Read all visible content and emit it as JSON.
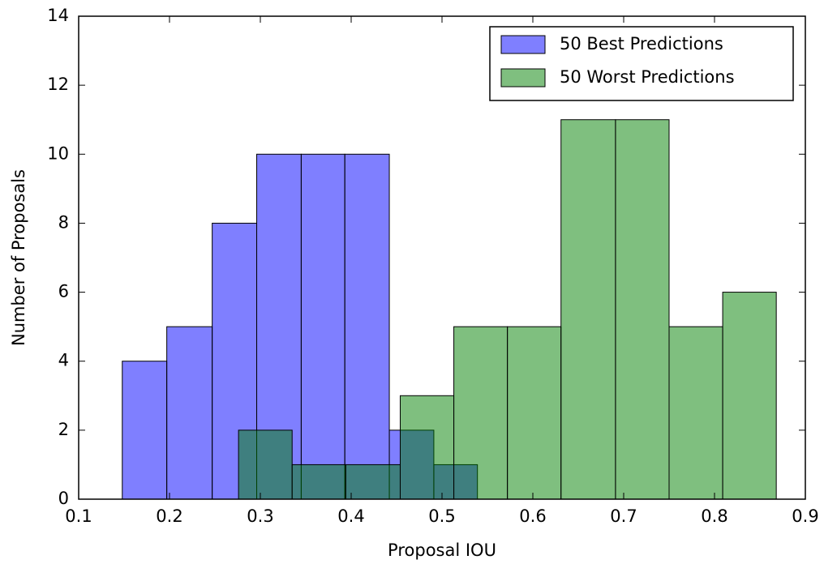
{
  "chart_data": {
    "type": "histogram",
    "xlabel": "Proposal IOU",
    "ylabel": "Number of Proposals",
    "series": [
      {
        "name": "50 Best Predictions",
        "color": "#0000ff",
        "bins": [
          0.148,
          0.197,
          0.247,
          0.296,
          0.345,
          0.393,
          0.442,
          0.491,
          0.539
        ],
        "values": [
          4,
          5,
          8,
          10,
          10,
          10,
          2,
          1
        ]
      },
      {
        "name": "50 Worst Predictions",
        "color": "#008000",
        "bins": [
          0.276,
          0.335,
          0.394,
          0.454,
          0.513,
          0.572,
          0.631,
          0.691,
          0.75,
          0.809,
          0.868
        ],
        "values": [
          2,
          1,
          1,
          3,
          5,
          5,
          11,
          11,
          5,
          6
        ]
      }
    ],
    "xlim": [
      0.1,
      0.9
    ],
    "xticks": [
      0.1,
      0.2,
      0.3,
      0.4,
      0.5,
      0.6,
      0.7,
      0.8,
      0.9
    ],
    "ylim": [
      0,
      14
    ],
    "yticks": [
      0,
      2,
      4,
      6,
      8,
      10,
      12,
      14
    ],
    "legend": "upper right"
  }
}
